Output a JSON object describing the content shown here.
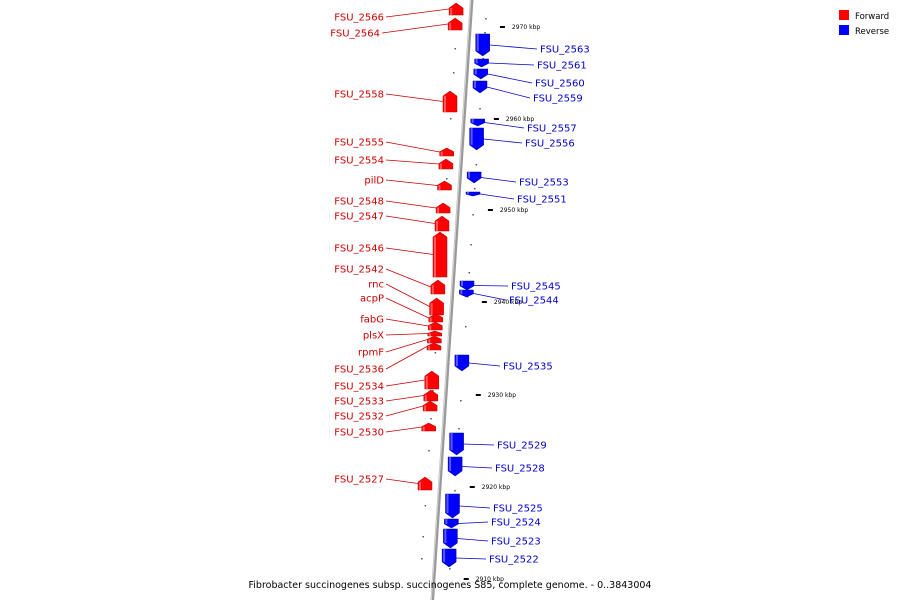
{
  "caption": "Fibrobacter succinogenes subsp. succinogenes S85, complete genome. - 0..3843004",
  "legend": [
    {
      "label": "Forward",
      "color": "#ff0000"
    },
    {
      "label": "Reverse",
      "color": "#0000ff"
    }
  ],
  "colors": {
    "forward": "#ff0000",
    "reverse": "#0000ff",
    "forward_text": "#cc0000",
    "reverse_text": "#0000cc",
    "backbone": "#999999"
  },
  "ticks": [
    "2970 kbp",
    "2960 kbp",
    "2950 kbp",
    "2940 kbp",
    "2930 kbp",
    "2920 kbp",
    "2910 kbp"
  ],
  "genes": [
    {
      "name": "FSU_2566",
      "strand": "forward"
    },
    {
      "name": "FSU_2564",
      "strand": "forward"
    },
    {
      "name": "FSU_2563",
      "strand": "reverse"
    },
    {
      "name": "FSU_2561",
      "strand": "reverse"
    },
    {
      "name": "FSU_2560",
      "strand": "reverse"
    },
    {
      "name": "FSU_2559",
      "strand": "reverse"
    },
    {
      "name": "FSU_2558",
      "strand": "forward"
    },
    {
      "name": "FSU_2557",
      "strand": "reverse"
    },
    {
      "name": "FSU_2556",
      "strand": "reverse"
    },
    {
      "name": "FSU_2555",
      "strand": "forward"
    },
    {
      "name": "FSU_2554",
      "strand": "forward"
    },
    {
      "name": "pilD",
      "strand": "forward"
    },
    {
      "name": "FSU_2553",
      "strand": "reverse"
    },
    {
      "name": "FSU_2551",
      "strand": "reverse"
    },
    {
      "name": "FSU_2548",
      "strand": "forward"
    },
    {
      "name": "FSU_2547",
      "strand": "forward"
    },
    {
      "name": "FSU_2546",
      "strand": "forward"
    },
    {
      "name": "FSU_2542",
      "strand": "forward"
    },
    {
      "name": "rnc",
      "strand": "forward"
    },
    {
      "name": "acpP",
      "strand": "forward"
    },
    {
      "name": "FSU_2545",
      "strand": "reverse"
    },
    {
      "name": "FSU_2544",
      "strand": "reverse"
    },
    {
      "name": "fabG",
      "strand": "forward"
    },
    {
      "name": "plsX",
      "strand": "forward"
    },
    {
      "name": "rpmF",
      "strand": "forward"
    },
    {
      "name": "FSU_2536",
      "strand": "forward"
    },
    {
      "name": "FSU_2535",
      "strand": "reverse"
    },
    {
      "name": "FSU_2534",
      "strand": "forward"
    },
    {
      "name": "FSU_2533",
      "strand": "forward"
    },
    {
      "name": "FSU_2532",
      "strand": "forward"
    },
    {
      "name": "FSU_2530",
      "strand": "forward"
    },
    {
      "name": "FSU_2529",
      "strand": "reverse"
    },
    {
      "name": "FSU_2528",
      "strand": "reverse"
    },
    {
      "name": "FSU_2527",
      "strand": "forward"
    },
    {
      "name": "FSU_2525",
      "strand": "reverse"
    },
    {
      "name": "FSU_2524",
      "strand": "reverse"
    },
    {
      "name": "FSU_2523",
      "strand": "reverse"
    },
    {
      "name": "FSU_2522",
      "strand": "reverse"
    }
  ]
}
